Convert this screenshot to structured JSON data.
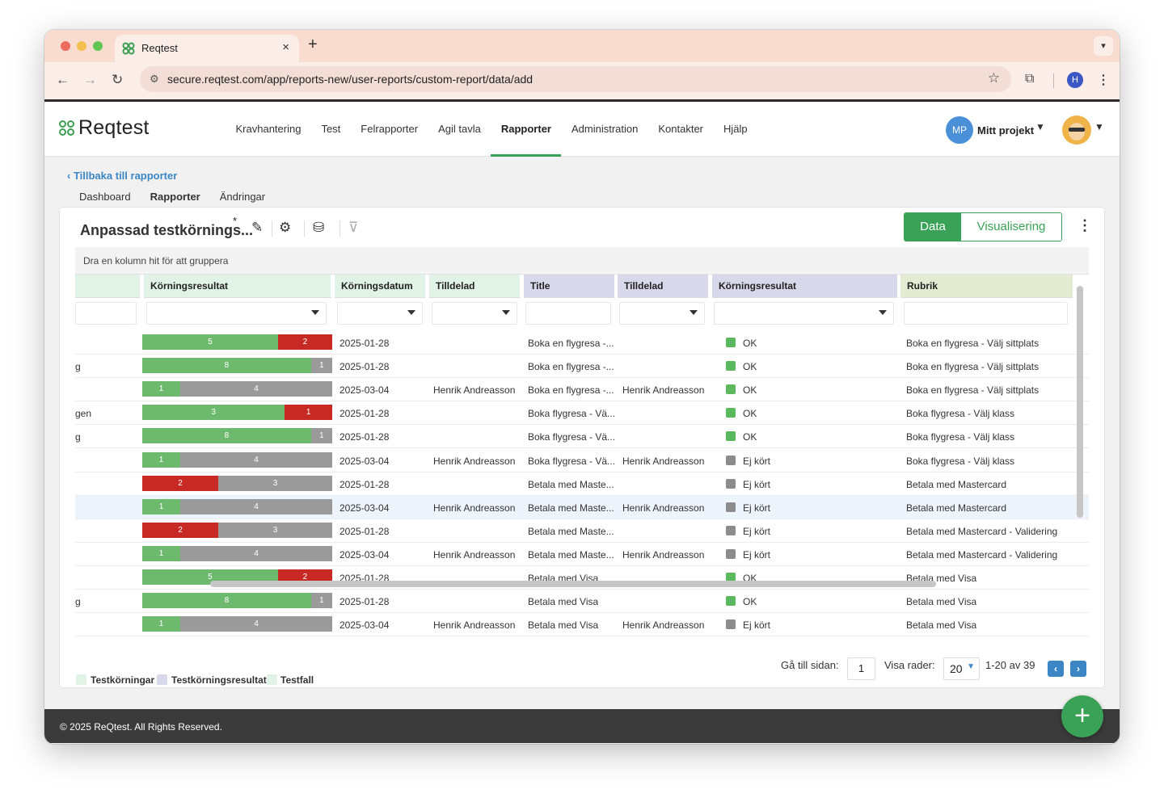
{
  "browser": {
    "tab_title": "Reqtest",
    "url": "secure.reqtest.com/app/reports-new/user-reports/custom-report/data/add",
    "profile_initial": "H"
  },
  "app": {
    "logo_text": "Reqtest",
    "nav": [
      "Kravhantering",
      "Test",
      "Felrapporter",
      "Agil tavla",
      "Rapporter",
      "Administration",
      "Kontakter",
      "Hjälp"
    ],
    "active_nav": "Rapporter",
    "project_initials": "MP",
    "project_name": "Mitt projekt"
  },
  "report": {
    "back_link": "Tillbaka till rapporter",
    "subtabs": [
      "Dashboard",
      "Rapporter",
      "Ändringar"
    ],
    "active_subtab": "Rapporter",
    "title": "Anpassad testkörnings...",
    "title_marker": "*",
    "view_toggle": [
      "Data",
      "Visualisering"
    ],
    "group_hint": "Dra en kolumn hit för att gruppera",
    "columns": [
      "Körningsresultat",
      "Körningsdatum",
      "Tilldelad",
      "Title",
      "Tilldelad",
      "Körningsresultat",
      "Rubrik"
    ]
  },
  "rows": [
    {
      "left": "",
      "bar": [
        {
          "v": "5",
          "c": "green"
        },
        {
          "v": "2",
          "c": "red"
        }
      ],
      "date": "2025-01-28",
      "assigned": "",
      "title": "Boka en flygresa -...",
      "assigned2": "",
      "status_color": "green",
      "status": "OK",
      "heading": "Boka en flygresa - Välj sittplats",
      "selected": false
    },
    {
      "left": "g",
      "bar": [
        {
          "v": "8",
          "c": "green"
        },
        {
          "v": "1",
          "c": "grey"
        }
      ],
      "date": "2025-01-28",
      "assigned": "",
      "title": "Boka en flygresa -...",
      "assigned2": "",
      "status_color": "green",
      "status": "OK",
      "heading": "Boka en flygresa - Välj sittplats",
      "selected": false
    },
    {
      "left": "",
      "bar": [
        {
          "v": "1",
          "c": "green"
        },
        {
          "v": "4",
          "c": "grey"
        }
      ],
      "date": "2025-03-04",
      "assigned": "Henrik Andreasson",
      "title": "Boka en flygresa -...",
      "assigned2": "Henrik Andreasson",
      "status_color": "green",
      "status": "OK",
      "heading": "Boka en flygresa - Välj sittplats",
      "selected": false
    },
    {
      "left": "gen",
      "bar": [
        {
          "v": "3",
          "c": "green"
        },
        {
          "v": "1",
          "c": "red"
        }
      ],
      "date": "2025-01-28",
      "assigned": "",
      "title": "Boka flygresa - Vä...",
      "assigned2": "",
      "status_color": "green",
      "status": "OK",
      "heading": "Boka flygresa - Välj klass",
      "selected": false
    },
    {
      "left": "g",
      "bar": [
        {
          "v": "8",
          "c": "green"
        },
        {
          "v": "1",
          "c": "grey"
        }
      ],
      "date": "2025-01-28",
      "assigned": "",
      "title": "Boka flygresa - Vä...",
      "assigned2": "",
      "status_color": "green",
      "status": "OK",
      "heading": "Boka flygresa - Välj klass",
      "selected": false
    },
    {
      "left": "",
      "bar": [
        {
          "v": "1",
          "c": "green"
        },
        {
          "v": "4",
          "c": "grey"
        }
      ],
      "date": "2025-03-04",
      "assigned": "Henrik Andreasson",
      "title": "Boka flygresa - Vä...",
      "assigned2": "Henrik Andreasson",
      "status_color": "grey",
      "status": "Ej kört",
      "heading": "Boka flygresa - Välj klass",
      "selected": false
    },
    {
      "left": "",
      "bar": [
        {
          "v": "2",
          "c": "red"
        },
        {
          "v": "3",
          "c": "grey"
        }
      ],
      "date": "2025-01-28",
      "assigned": "",
      "title": "Betala med Maste...",
      "assigned2": "",
      "status_color": "grey",
      "status": "Ej kört",
      "heading": "Betala med Mastercard",
      "selected": false
    },
    {
      "left": "",
      "bar": [
        {
          "v": "1",
          "c": "green"
        },
        {
          "v": "4",
          "c": "grey"
        }
      ],
      "date": "2025-03-04",
      "assigned": "Henrik Andreasson",
      "title": "Betala med Maste...",
      "assigned2": "Henrik Andreasson",
      "status_color": "grey",
      "status": "Ej kört",
      "heading": "Betala med Mastercard",
      "selected": true
    },
    {
      "left": "",
      "bar": [
        {
          "v": "2",
          "c": "red"
        },
        {
          "v": "3",
          "c": "grey"
        }
      ],
      "date": "2025-01-28",
      "assigned": "",
      "title": "Betala med Maste...",
      "assigned2": "",
      "status_color": "grey",
      "status": "Ej kört",
      "heading": "Betala med Mastercard - Validering",
      "selected": false
    },
    {
      "left": "",
      "bar": [
        {
          "v": "1",
          "c": "green"
        },
        {
          "v": "4",
          "c": "grey"
        }
      ],
      "date": "2025-03-04",
      "assigned": "Henrik Andreasson",
      "title": "Betala med Maste...",
      "assigned2": "Henrik Andreasson",
      "status_color": "grey",
      "status": "Ej kört",
      "heading": "Betala med Mastercard - Validering",
      "selected": false
    },
    {
      "left": "",
      "bar": [
        {
          "v": "5",
          "c": "green"
        },
        {
          "v": "2",
          "c": "red"
        }
      ],
      "date": "2025-01-28",
      "assigned": "",
      "title": "Betala med Visa",
      "assigned2": "",
      "status_color": "green",
      "status": "OK",
      "heading": "Betala med Visa",
      "selected": false
    },
    {
      "left": "g",
      "bar": [
        {
          "v": "8",
          "c": "green"
        },
        {
          "v": "1",
          "c": "grey"
        }
      ],
      "date": "2025-01-28",
      "assigned": "",
      "title": "Betala med Visa",
      "assigned2": "",
      "status_color": "green",
      "status": "OK",
      "heading": "Betala med Visa",
      "selected": false
    },
    {
      "left": "",
      "bar": [
        {
          "v": "1",
          "c": "green"
        },
        {
          "v": "4",
          "c": "grey"
        }
      ],
      "date": "2025-03-04",
      "assigned": "Henrik Andreasson",
      "title": "Betala med Visa",
      "assigned2": "Henrik Andreasson",
      "status_color": "grey",
      "status": "Ej kört",
      "heading": "Betala med Visa",
      "selected": false
    }
  ],
  "pagination": {
    "goto_label": "Gå till sidan:",
    "page": "1",
    "rows_label": "Visa rader:",
    "page_size": "20",
    "range": "1-20 av 39"
  },
  "legend": [
    "Testkörningar",
    "Testkörningsresultat",
    "Testfall"
  ],
  "footer": "© 2025 ReQtest. All Rights Reserved.",
  "colors": {
    "accent": "#3aa256",
    "link": "#3d86c6",
    "bar_green": "#6db96d",
    "bar_red": "#c72a24",
    "bar_grey": "#9a9a9a",
    "status_green": "#5cb85c",
    "status_grey": "#8c8c8c"
  }
}
